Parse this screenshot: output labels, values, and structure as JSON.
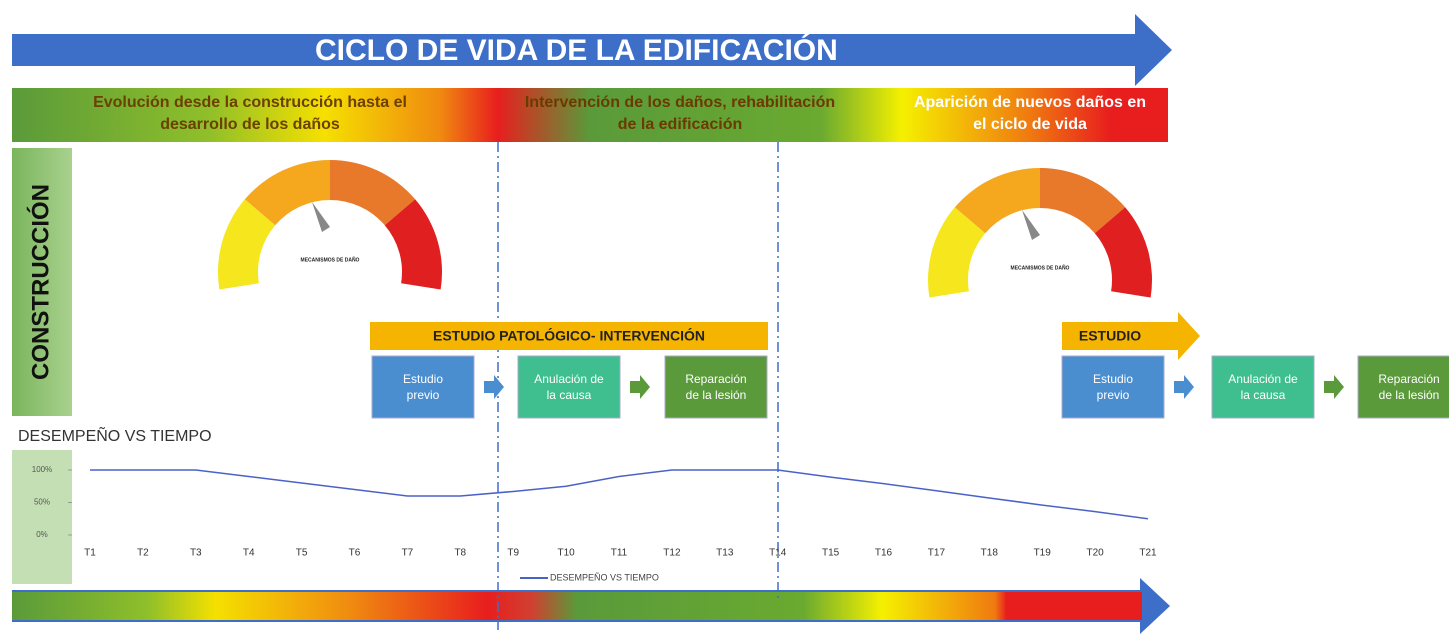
{
  "header": {
    "title": "CICLO DE VIDA DE LA EDIFICACIÓN"
  },
  "phases": [
    {
      "lines": [
        "Evolución desde la construcción hasta el",
        "desarrollo de los daños"
      ]
    },
    {
      "lines": [
        "Intervención de los daños, rehabilitación",
        "de la edificación"
      ]
    },
    {
      "lines": [
        "Aparición de nuevos daños en",
        "el ciclo de vida"
      ]
    }
  ],
  "side_label": "CONSTRUCCIÓN",
  "gauges": [
    {
      "label": "MECANISMOS DE DAÑO"
    },
    {
      "label": "MECANISMOS DE DAÑO"
    }
  ],
  "study_1": {
    "title": "ESTUDIO PATOLÓGICO- INTERVENCIÓN",
    "steps": [
      [
        "Estudio",
        "previo"
      ],
      [
        "Anulación de",
        "la causa"
      ],
      [
        "Reparación",
        "de la lesión"
      ]
    ]
  },
  "study_2": {
    "title": "ESTUDIO",
    "steps": [
      [
        "Estudio",
        "previo"
      ],
      [
        "Anulación de",
        "la causa"
      ],
      [
        "Reparación",
        "de la lesión"
      ]
    ]
  },
  "chart_data": {
    "type": "line",
    "title": "DESEMPEÑO VS TIEMPO",
    "categories": [
      "T1",
      "T2",
      "T3",
      "T4",
      "T5",
      "T6",
      "T7",
      "T8",
      "T9",
      "T10",
      "T11",
      "T12",
      "T13",
      "T14",
      "T15",
      "T16",
      "T17",
      "T18",
      "T19",
      "T20",
      "T21"
    ],
    "series": [
      {
        "name": "DESEMPEÑO VS TIEMPO",
        "color": "#4a62c8",
        "values": [
          100,
          100,
          100,
          90,
          80,
          70,
          60,
          60,
          67,
          75,
          90,
          100,
          100,
          100,
          89,
          79,
          68,
          57,
          46,
          36,
          25
        ]
      }
    ],
    "ylim": [
      0,
      100
    ],
    "yticks": [
      {
        "value": 0,
        "label": "0%"
      },
      {
        "value": 50,
        "label": "50%"
      },
      {
        "value": 100,
        "label": "100%"
      }
    ]
  }
}
